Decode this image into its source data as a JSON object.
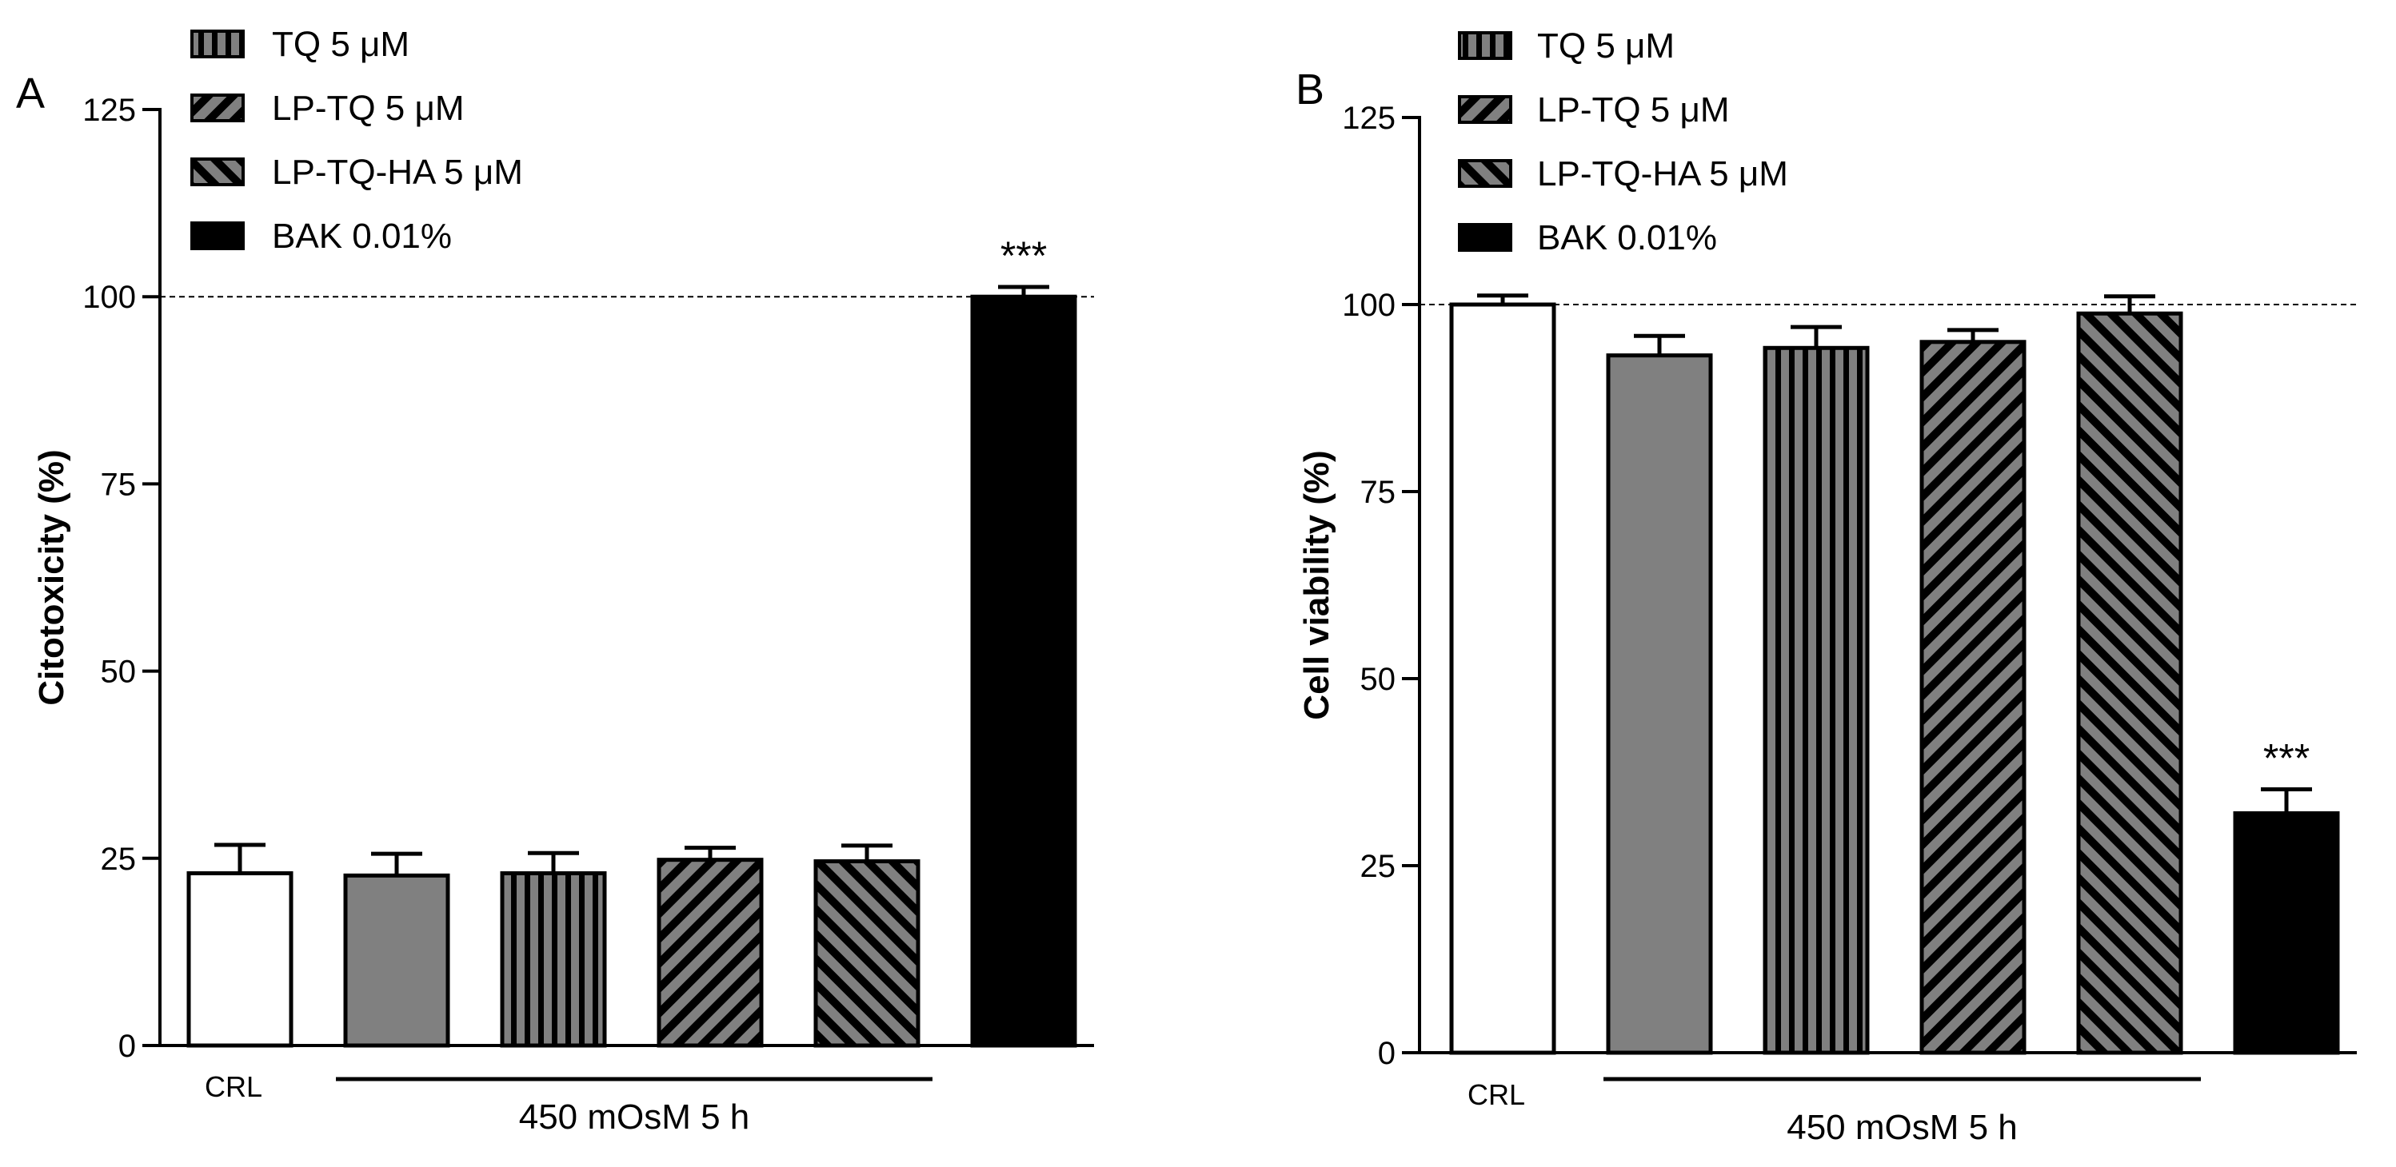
{
  "chart_data": [
    {
      "panel_label": "A",
      "type": "bar",
      "ylabel": "Citotoxicity (%)",
      "xlabel": "",
      "ylim": [
        0,
        125
      ],
      "yticks": [
        "0",
        "25",
        "50",
        "75",
        "100",
        "125"
      ],
      "reference_line": 100,
      "categories": [
        "CRL",
        "",
        "",
        "",
        "",
        ""
      ],
      "group_label": "450 mOsM 5 h",
      "values": [
        23,
        22.7,
        23,
        24.8,
        24.6,
        100
      ],
      "errors": [
        3.8,
        2.9,
        2.7,
        1.6,
        2.1,
        1.3
      ],
      "fills": [
        "white",
        "gray",
        "vertical-stripes",
        "diagonal-back",
        "diagonal-forward",
        "black"
      ],
      "significance": [
        "",
        "",
        "",
        "",
        "",
        "***"
      ],
      "legend": [
        {
          "label": "TQ 5 μM",
          "fill": "vertical-stripes"
        },
        {
          "label": "LP-TQ 5 μM",
          "fill": "diagonal-back"
        },
        {
          "label": "LP-TQ-HA 5 μM",
          "fill": "diagonal-forward"
        },
        {
          "label": "BAK 0.01%",
          "fill": "black"
        }
      ]
    },
    {
      "panel_label": "B",
      "type": "bar",
      "ylabel": "Cell viability (%)",
      "xlabel": "",
      "ylim": [
        0,
        125
      ],
      "yticks": [
        "0",
        "25",
        "50",
        "75",
        "100",
        "125"
      ],
      "reference_line": 100,
      "categories": [
        "CRL",
        "",
        "",
        "",
        "",
        ""
      ],
      "group_label": "450 mOsM 5 h",
      "values": [
        100,
        93.2,
        94.2,
        95,
        98.8,
        32
      ],
      "errors": [
        1.2,
        2.6,
        2.8,
        1.6,
        2.3,
        3.2
      ],
      "fills": [
        "white",
        "gray",
        "vertical-stripes",
        "diagonal-back",
        "diagonal-forward",
        "black"
      ],
      "significance": [
        "",
        "",
        "",
        "",
        "",
        "***"
      ],
      "legend": [
        {
          "label": "TQ 5 μM",
          "fill": "vertical-stripes"
        },
        {
          "label": "LP-TQ 5 μM",
          "fill": "diagonal-back"
        },
        {
          "label": "LP-TQ-HA 5 μM",
          "fill": "diagonal-forward"
        },
        {
          "label": "BAK 0.01%",
          "fill": "black"
        }
      ]
    }
  ],
  "colors": {
    "gray_fill": "#808080",
    "black_fill": "#000000",
    "white_fill": "#ffffff",
    "stroke": "#000000"
  }
}
